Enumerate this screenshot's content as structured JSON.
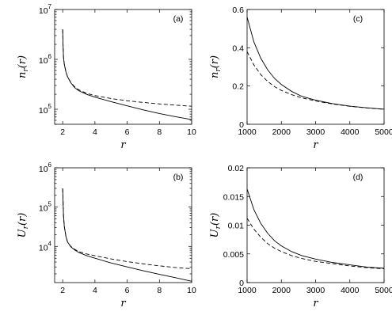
{
  "chart_data": [
    {
      "id": "a",
      "type": "line",
      "panel_label": "(a)",
      "xlabel": "r",
      "ylabel": "n_r(r)",
      "y_scale": "log",
      "xlim": [
        1.5,
        10
      ],
      "ylim": [
        50000,
        10000000
      ],
      "x_ticks": [
        "2",
        "4",
        "6",
        "8",
        "10"
      ],
      "y_ticks": [
        "10^5",
        "10^6",
        "10^7"
      ],
      "series": [
        {
          "style": "solid",
          "x": [
            2.0,
            2.02,
            2.05,
            2.1,
            2.2,
            2.3,
            2.5,
            2.75,
            3.0,
            3.5,
            4.0,
            5.0,
            6.0,
            7.0,
            8.0,
            9.0,
            10.0
          ],
          "y": [
            4000000,
            2000000,
            1100000,
            800000,
            560000,
            450000,
            340000,
            270000,
            235000,
            198000,
            175000,
            142000,
            117000,
            97000,
            82000,
            71000,
            62000
          ]
        },
        {
          "style": "dashed",
          "x": [
            2.0,
            2.02,
            2.05,
            2.1,
            2.2,
            2.3,
            2.5,
            2.75,
            3.0,
            3.5,
            4.0,
            5.0,
            6.0,
            7.0,
            8.0,
            9.0,
            10.0
          ],
          "y": [
            4000000,
            2000000,
            1100000,
            800000,
            560000,
            450000,
            345000,
            280000,
            245000,
            208000,
            188000,
            164000,
            148000,
            137000,
            128000,
            121000,
            115000
          ]
        }
      ]
    },
    {
      "id": "b",
      "type": "line",
      "panel_label": "(b)",
      "xlabel": "r",
      "ylabel": "U_r(r)",
      "y_scale": "log",
      "xlim": [
        1.5,
        10
      ],
      "ylim": [
        1200,
        1000000
      ],
      "x_ticks": [
        "2",
        "4",
        "6",
        "8",
        "10"
      ],
      "y_ticks": [
        "10^4",
        "10^5",
        "10^6"
      ],
      "series": [
        {
          "style": "solid",
          "x": [
            2.0,
            2.02,
            2.05,
            2.1,
            2.2,
            2.3,
            2.5,
            2.75,
            3.0,
            3.5,
            4.0,
            5.0,
            6.0,
            7.0,
            8.0,
            9.0,
            10.0
          ],
          "y": [
            300000,
            150000,
            60000,
            32000,
            18000,
            13000,
            9800,
            8100,
            7000,
            5800,
            5000,
            3800,
            3000,
            2400,
            1950,
            1600,
            1300
          ]
        },
        {
          "style": "dashed",
          "x": [
            2.0,
            2.02,
            2.05,
            2.1,
            2.2,
            2.3,
            2.5,
            2.75,
            3.0,
            3.5,
            4.0,
            5.0,
            6.0,
            7.0,
            8.0,
            9.0,
            10.0
          ],
          "y": [
            300000,
            150000,
            60000,
            32000,
            18000,
            13000,
            10000,
            8400,
            7400,
            6400,
            5800,
            4800,
            4100,
            3600,
            3200,
            2900,
            2700
          ]
        }
      ]
    },
    {
      "id": "c",
      "type": "line",
      "panel_label": "(c)",
      "xlabel": "r",
      "ylabel": "n_r(r)",
      "y_scale": "linear",
      "xlim": [
        1000,
        5000
      ],
      "ylim": [
        0,
        0.6
      ],
      "x_ticks": [
        "1000",
        "2000",
        "3000",
        "4000",
        "5000"
      ],
      "y_ticks": [
        "0",
        "0.2",
        "0.4",
        "0.6"
      ],
      "series": [
        {
          "style": "solid",
          "x": [
            1000,
            1200,
            1400,
            1600,
            1800,
            2000,
            2300,
            2600,
            3000,
            3500,
            4000,
            4500,
            5000
          ],
          "y": [
            0.56,
            0.43,
            0.345,
            0.285,
            0.24,
            0.208,
            0.172,
            0.146,
            0.126,
            0.108,
            0.095,
            0.086,
            0.079
          ]
        },
        {
          "style": "dashed",
          "x": [
            1000,
            1200,
            1400,
            1600,
            1800,
            2000,
            2300,
            2600,
            3000,
            3500,
            4000,
            4500,
            5000
          ],
          "y": [
            0.38,
            0.31,
            0.26,
            0.224,
            0.197,
            0.177,
            0.155,
            0.138,
            0.122,
            0.106,
            0.094,
            0.085,
            0.078
          ]
        }
      ]
    },
    {
      "id": "d",
      "type": "line",
      "panel_label": "(d)",
      "xlabel": "r",
      "ylabel": "U_r(r)",
      "y_scale": "linear",
      "xlim": [
        1000,
        5000
      ],
      "ylim": [
        0,
        0.02
      ],
      "x_ticks": [
        "1000",
        "2000",
        "3000",
        "4000",
        "5000"
      ],
      "y_ticks": [
        "0",
        "0.005",
        "0.01",
        "0.015",
        "0.02"
      ],
      "series": [
        {
          "style": "solid",
          "x": [
            1000,
            1200,
            1400,
            1600,
            1800,
            2000,
            2300,
            2600,
            3000,
            3500,
            4000,
            4500,
            5000
          ],
          "y": [
            0.0163,
            0.0127,
            0.0103,
            0.0086,
            0.0073,
            0.0064,
            0.0054,
            0.0047,
            0.0041,
            0.0035,
            0.0031,
            0.0027,
            0.0025
          ]
        },
        {
          "style": "dashed",
          "x": [
            1000,
            1200,
            1400,
            1600,
            1800,
            2000,
            2300,
            2600,
            3000,
            3500,
            4000,
            4500,
            5000
          ],
          "y": [
            0.0112,
            0.0093,
            0.0079,
            0.0068,
            0.006,
            0.0054,
            0.0047,
            0.0042,
            0.0037,
            0.0033,
            0.0029,
            0.0026,
            0.0024
          ]
        }
      ]
    }
  ]
}
